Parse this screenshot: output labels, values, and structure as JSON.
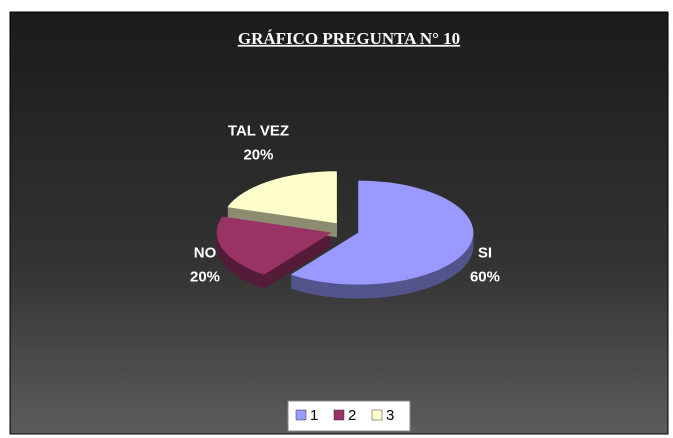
{
  "chart_data": {
    "type": "pie3d",
    "title": "GRÁFICO PREGUNTA N° 10",
    "categories": [
      "SI",
      "NO",
      "TAL VEZ"
    ],
    "values": [
      60,
      20,
      20
    ],
    "value_labels": [
      "60%",
      "20%",
      "20%"
    ],
    "colors": [
      "#9999ff",
      "#993366",
      "#ffffcc"
    ],
    "legend": [
      "1",
      "2",
      "3"
    ],
    "legend_position": "bottom"
  }
}
